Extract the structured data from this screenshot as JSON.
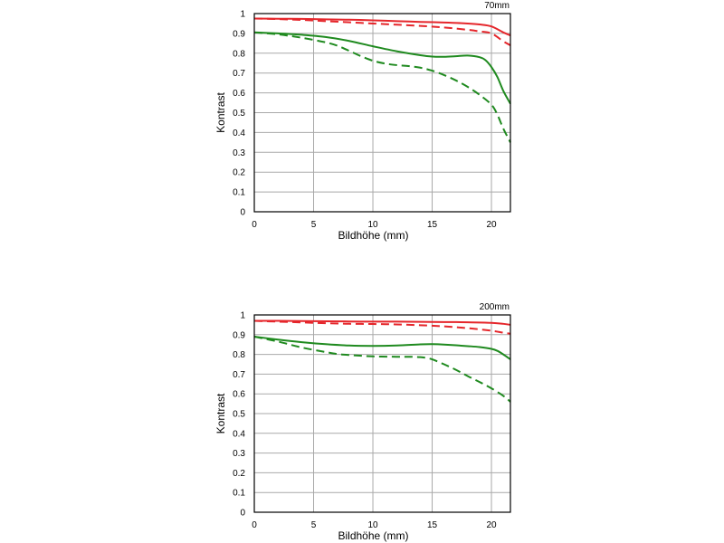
{
  "chart_data": [
    {
      "type": "line",
      "title": "70mm",
      "xlabel": "Bildhöhe (mm)",
      "ylabel": "Kontrast",
      "xlim": [
        0,
        21.6
      ],
      "ylim": [
        0,
        1
      ],
      "xticks": [
        "0",
        "5",
        "10",
        "15",
        "20"
      ],
      "yticks": [
        "0",
        "0.1",
        "0.2",
        "0.3",
        "0.4",
        "0.5",
        "0.6",
        "0.7",
        "0.8",
        "0.9",
        "1"
      ],
      "grid": true,
      "series": [
        {
          "style": "solid",
          "color": "#e5262b",
          "x": [
            0,
            2,
            4,
            6,
            8,
            10,
            12,
            14,
            16,
            18,
            19,
            20,
            21,
            21.6
          ],
          "y": [
            0.975,
            0.974,
            0.973,
            0.971,
            0.969,
            0.966,
            0.962,
            0.958,
            0.955,
            0.95,
            0.945,
            0.935,
            0.905,
            0.89
          ]
        },
        {
          "style": "dashed",
          "color": "#e5262b",
          "x": [
            0,
            2,
            4,
            6,
            8,
            10,
            12,
            14,
            16,
            18,
            19,
            20,
            21,
            21.6
          ],
          "y": [
            0.975,
            0.972,
            0.968,
            0.962,
            0.956,
            0.95,
            0.944,
            0.938,
            0.93,
            0.918,
            0.91,
            0.9,
            0.86,
            0.84
          ]
        },
        {
          "style": "solid",
          "color": "#1f8a1f",
          "x": [
            0,
            2,
            4,
            6,
            8,
            10,
            12,
            14,
            15,
            16,
            17,
            18,
            19,
            19.5,
            20,
            20.5,
            21,
            21.6
          ],
          "y": [
            0.905,
            0.9,
            0.893,
            0.882,
            0.862,
            0.835,
            0.81,
            0.79,
            0.783,
            0.782,
            0.785,
            0.788,
            0.78,
            0.765,
            0.73,
            0.68,
            0.61,
            0.545
          ]
        },
        {
          "style": "dashed",
          "color": "#1f8a1f",
          "x": [
            0,
            2,
            4,
            6,
            7,
            8,
            9,
            10,
            11,
            12,
            13,
            14,
            15,
            16,
            17,
            18,
            19,
            20,
            20.5,
            21,
            21.6
          ],
          "y": [
            0.905,
            0.895,
            0.878,
            0.855,
            0.838,
            0.812,
            0.785,
            0.762,
            0.748,
            0.74,
            0.735,
            0.727,
            0.712,
            0.69,
            0.663,
            0.63,
            0.59,
            0.54,
            0.49,
            0.42,
            0.35
          ]
        }
      ]
    },
    {
      "type": "line",
      "title": "200mm",
      "xlabel": "Bildhöhe (mm)",
      "ylabel": "Kontrast",
      "xlim": [
        0,
        21.6
      ],
      "ylim": [
        0,
        1
      ],
      "xticks": [
        "0",
        "5",
        "10",
        "15",
        "20"
      ],
      "yticks": [
        "0",
        "0.1",
        "0.2",
        "0.3",
        "0.4",
        "0.5",
        "0.6",
        "0.7",
        "0.8",
        "0.9",
        "1"
      ],
      "grid": true,
      "series": [
        {
          "style": "solid",
          "color": "#e5262b",
          "x": [
            0,
            2,
            4,
            6,
            8,
            10,
            12,
            14,
            16,
            18,
            20,
            21,
            21.6
          ],
          "y": [
            0.97,
            0.97,
            0.969,
            0.968,
            0.967,
            0.966,
            0.966,
            0.965,
            0.964,
            0.963,
            0.96,
            0.955,
            0.95
          ]
        },
        {
          "style": "dashed",
          "color": "#e5262b",
          "x": [
            0,
            2,
            4,
            6,
            8,
            10,
            12,
            14,
            16,
            18,
            20,
            21,
            21.6
          ],
          "y": [
            0.97,
            0.966,
            0.962,
            0.958,
            0.955,
            0.954,
            0.952,
            0.948,
            0.942,
            0.933,
            0.92,
            0.91,
            0.905
          ]
        },
        {
          "style": "solid",
          "color": "#1f8a1f",
          "x": [
            0,
            2,
            4,
            6,
            8,
            10,
            12,
            14,
            15,
            16,
            18,
            19,
            20,
            20.5,
            21,
            21.6
          ],
          "y": [
            0.89,
            0.875,
            0.862,
            0.852,
            0.845,
            0.843,
            0.845,
            0.851,
            0.852,
            0.85,
            0.842,
            0.837,
            0.828,
            0.818,
            0.8,
            0.775
          ]
        },
        {
          "style": "dashed",
          "color": "#1f8a1f",
          "x": [
            0,
            2,
            4,
            6,
            7,
            8,
            10,
            12,
            13,
            14,
            14.5,
            15,
            16,
            17,
            18,
            19,
            20,
            21,
            21.6
          ],
          "y": [
            0.89,
            0.865,
            0.835,
            0.812,
            0.802,
            0.797,
            0.79,
            0.788,
            0.788,
            0.786,
            0.782,
            0.775,
            0.75,
            0.722,
            0.69,
            0.66,
            0.628,
            0.59,
            0.56
          ]
        }
      ]
    }
  ]
}
